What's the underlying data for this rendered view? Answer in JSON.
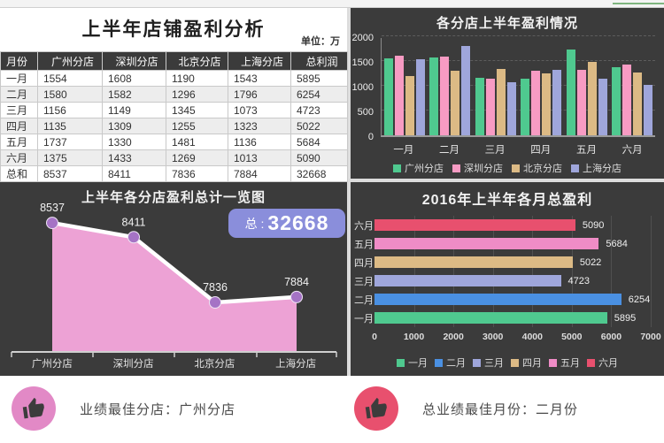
{
  "accent": {
    "green_line": "#7fb57f",
    "panel_dark": "#3b3b3b",
    "badge": "#8a8edb",
    "gutter": "#dcdcdc"
  },
  "table": {
    "title": "上半年店铺盈利分析",
    "unit": "单位：万",
    "headers": [
      "月份",
      "广州分店",
      "深圳分店",
      "北京分店",
      "上海分店",
      "总利润"
    ],
    "rows": [
      [
        "一月",
        "1554",
        "1608",
        "1190",
        "1543",
        "5895"
      ],
      [
        "二月",
        "1580",
        "1582",
        "1296",
        "1796",
        "6254"
      ],
      [
        "三月",
        "1156",
        "1149",
        "1345",
        "1073",
        "4723"
      ],
      [
        "四月",
        "1135",
        "1309",
        "1255",
        "1323",
        "5022"
      ],
      [
        "五月",
        "1737",
        "1330",
        "1481",
        "1136",
        "5684"
      ],
      [
        "六月",
        "1375",
        "1433",
        "1269",
        "1013",
        "5090"
      ],
      [
        "总和",
        "8537",
        "8411",
        "7836",
        "7884",
        "32668"
      ]
    ]
  },
  "chart_data": [
    {
      "type": "bar",
      "title": "各分店上半年盈利情况",
      "categories": [
        "一月",
        "二月",
        "三月",
        "四月",
        "五月",
        "六月"
      ],
      "series": [
        {
          "name": "广州分店",
          "color": "#4fc98f",
          "values": [
            1554,
            1580,
            1156,
            1135,
            1737,
            1375
          ]
        },
        {
          "name": "深圳分店",
          "color": "#f79bc3",
          "values": [
            1608,
            1582,
            1149,
            1309,
            1330,
            1433
          ]
        },
        {
          "name": "北京分店",
          "color": "#dcba85",
          "values": [
            1190,
            1296,
            1345,
            1255,
            1481,
            1269
          ]
        },
        {
          "name": "上海分店",
          "color": "#9fa6db",
          "values": [
            1543,
            1796,
            1073,
            1323,
            1136,
            1013
          ]
        }
      ],
      "ylim": [
        0,
        2000
      ],
      "yticks": [
        0,
        500,
        1000,
        1500,
        2000
      ],
      "grid": "dashed horizontal",
      "legend_position": "bottom"
    },
    {
      "type": "area",
      "title": "上半年各分店盈利总计一览图",
      "categories": [
        "广州分店",
        "深圳分店",
        "北京分店",
        "上海分店"
      ],
      "values": [
        8537,
        8411,
        7836,
        7884
      ],
      "total_prefix": "总 : ",
      "total_value": "32668",
      "fill_color": "#eda2d5",
      "line_color": "#ffffff",
      "marker_color": "#a573c5",
      "badge_color": "#8a8edb"
    },
    {
      "type": "bar",
      "orientation": "horizontal",
      "title": "2016年上半年各月总盈利",
      "categories": [
        "六月",
        "五月",
        "四月",
        "三月",
        "二月",
        "一月"
      ],
      "values": [
        5090,
        5684,
        5022,
        4723,
        6254,
        5895
      ],
      "colors": [
        "#e8506e",
        "#ef8cc6",
        "#dcba85",
        "#9fa6db",
        "#4a90e2",
        "#4fc98f"
      ],
      "xlim": [
        0,
        7000
      ],
      "xticks": [
        0,
        1000,
        2000,
        3000,
        4000,
        5000,
        6000,
        7000
      ],
      "legend": [
        {
          "name": "一月",
          "color": "#4fc98f"
        },
        {
          "name": "二月",
          "color": "#4a90e2"
        },
        {
          "name": "三月",
          "color": "#9fa6db"
        },
        {
          "name": "四月",
          "color": "#dcba85"
        },
        {
          "name": "五月",
          "color": "#ef8cc6"
        },
        {
          "name": "六月",
          "color": "#e8506e"
        }
      ],
      "legend_position": "bottom"
    }
  ],
  "footer": {
    "best_branch": {
      "label": "业绩最佳分店：广州分店",
      "icon": "thumb-up-icon",
      "circle_color": "#e289c6"
    },
    "best_month": {
      "label": "总业绩最佳月份：二月份",
      "icon": "thumb-up-icon",
      "circle_color": "#e8506e"
    }
  }
}
